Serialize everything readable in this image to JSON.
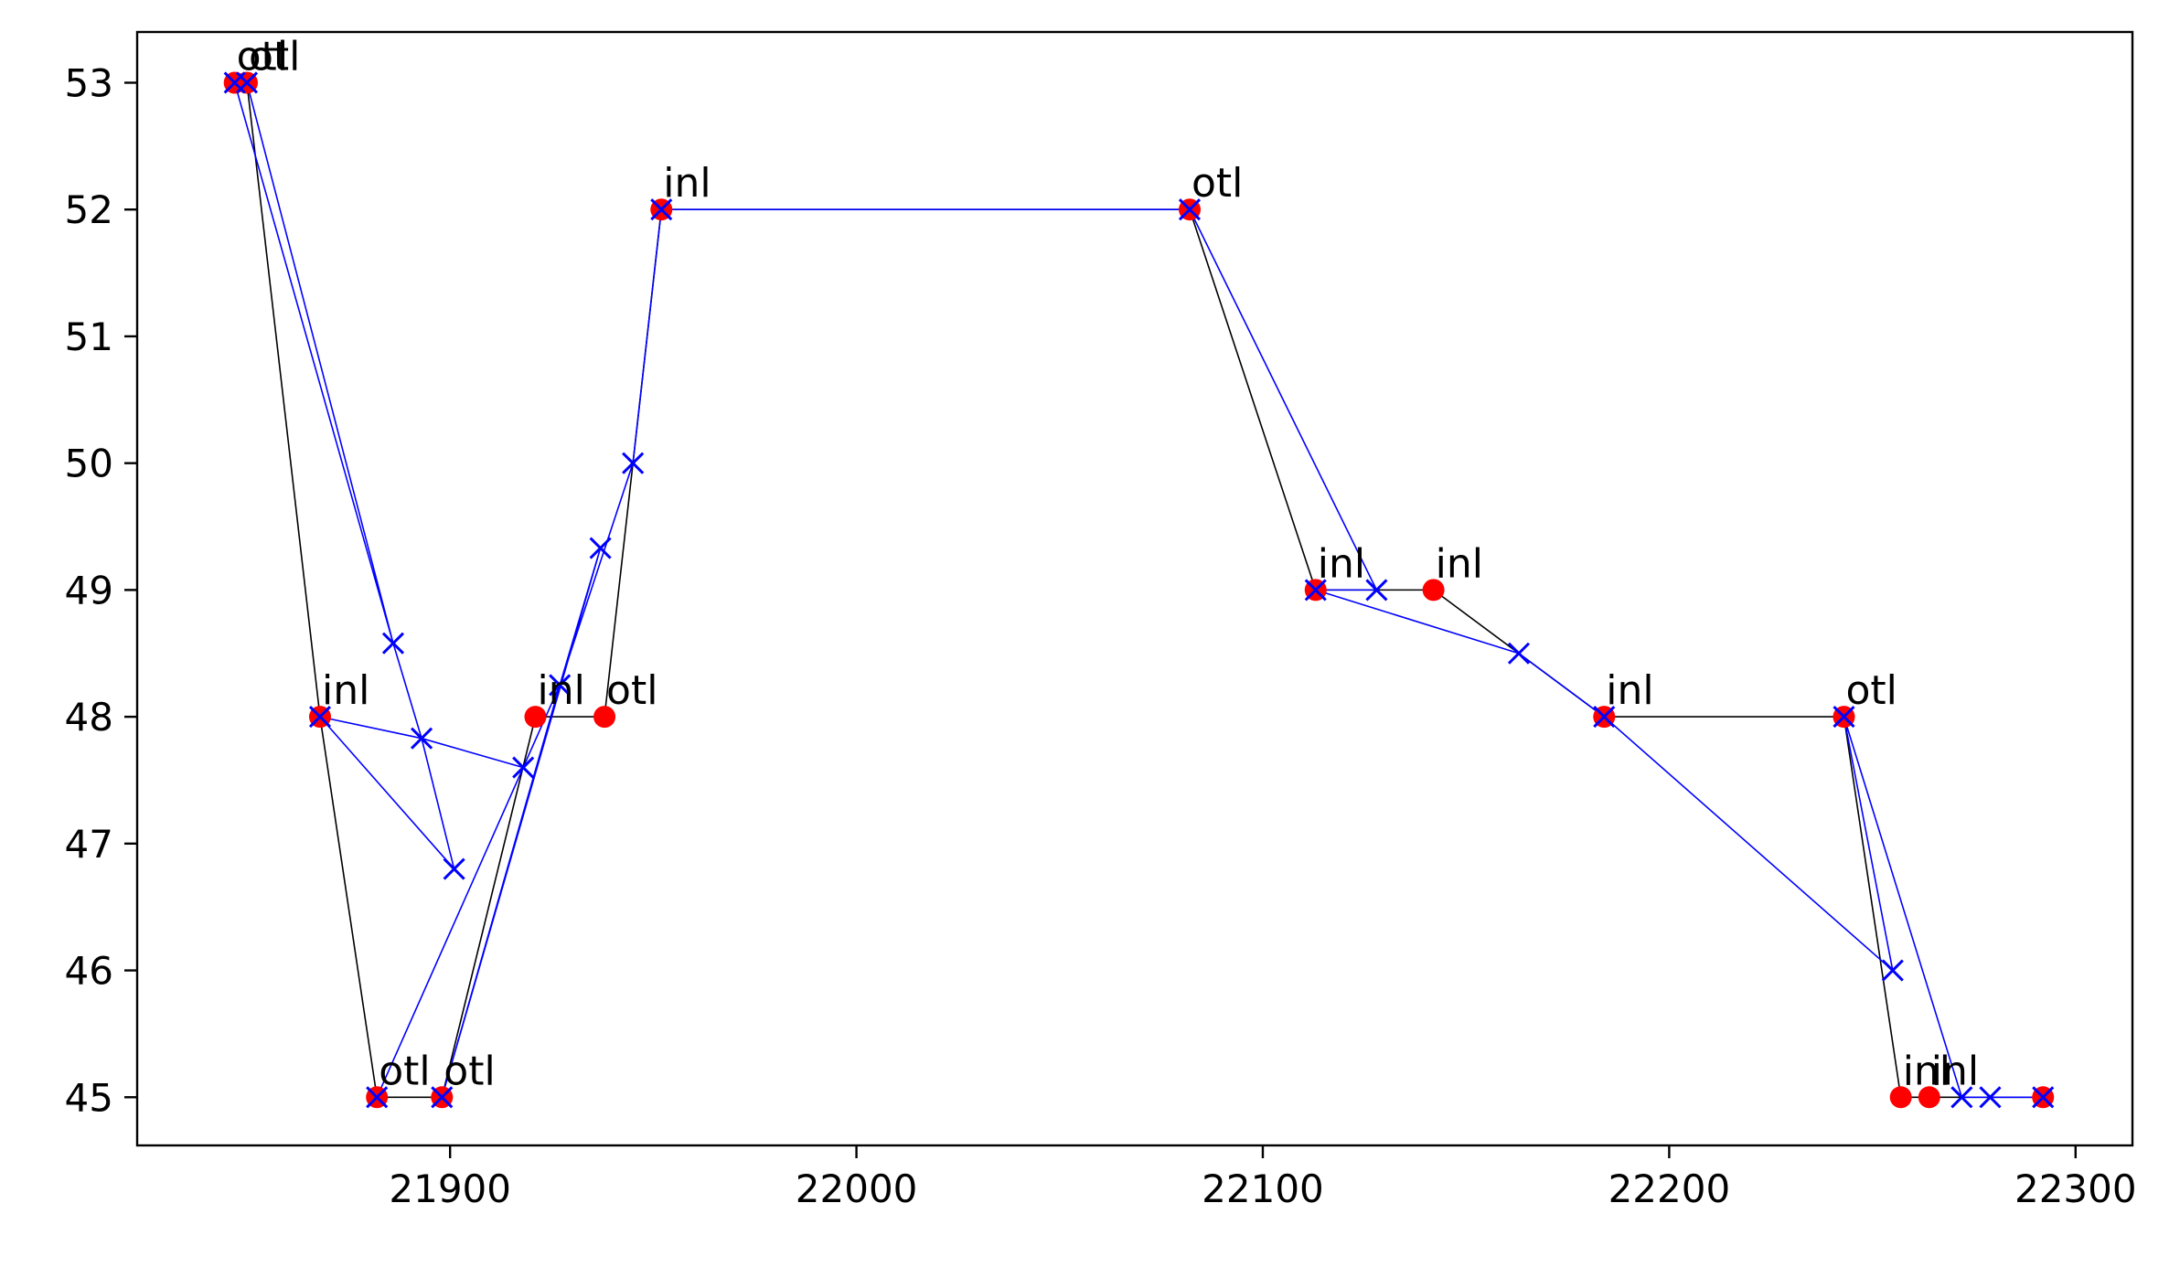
{
  "chart_data": {
    "type": "line",
    "title": "",
    "xlabel": "",
    "ylabel": "",
    "xlim": [
      21823,
      22314
    ],
    "ylim": [
      44.62,
      53.4
    ],
    "xticks": [
      21900,
      22000,
      22100,
      22200,
      22300
    ],
    "yticks": [
      45,
      46,
      47,
      48,
      49,
      50,
      51,
      52,
      53
    ],
    "grid": false,
    "legend": "none",
    "colors": {
      "line_black": "#000000",
      "line_blue": "#0000ff",
      "point_red": "#ff0000",
      "marker_blue": "#0000ff"
    },
    "series": [
      {
        "style": "black-line-red-dots",
        "points": [
          {
            "x": 21847,
            "y": 53,
            "label": "otl"
          },
          {
            "x": 21850,
            "y": 53,
            "label": "otl"
          },
          {
            "x": 21868,
            "y": 48,
            "label": "inl"
          },
          {
            "x": 21882,
            "y": 45,
            "label": "otl"
          },
          {
            "x": 21898,
            "y": 45,
            "label": "otl"
          },
          {
            "x": 21921,
            "y": 48,
            "label": "inl"
          },
          {
            "x": 21938,
            "y": 48,
            "label": "otl"
          },
          {
            "x": 21952,
            "y": 52,
            "label": "inl"
          },
          {
            "x": 22082,
            "y": 52,
            "label": "otl"
          },
          {
            "x": 22113,
            "y": 49,
            "label": "inl"
          },
          {
            "x": 22142,
            "y": 49,
            "label": "inl"
          },
          {
            "x": 22184,
            "y": 48,
            "label": "inl"
          },
          {
            "x": 22243,
            "y": 48,
            "label": "otl"
          },
          {
            "x": 22257,
            "y": 45,
            "label": "inl"
          },
          {
            "x": 22264,
            "y": 45,
            "label": "inl"
          },
          {
            "x": 22292,
            "y": 45,
            "label": ""
          }
        ]
      },
      {
        "style": "blue-line-x-markers",
        "points": [
          {
            "x": 21847,
            "y": 53
          },
          {
            "x": 21886,
            "y": 48.58
          },
          {
            "x": 21850,
            "y": 53
          },
          {
            "x": 21886,
            "y": 48.58
          },
          {
            "x": 21893,
            "y": 47.83
          },
          {
            "x": 21901,
            "y": 46.8
          },
          {
            "x": 21868,
            "y": 48
          },
          {
            "x": 21893,
            "y": 47.83
          },
          {
            "x": 21918,
            "y": 47.6
          },
          {
            "x": 21882,
            "y": 45
          },
          {
            "x": 21918,
            "y": 47.6
          },
          {
            "x": 21927,
            "y": 48.25
          },
          {
            "x": 21937,
            "y": 49.33
          },
          {
            "x": 21898,
            "y": 45
          },
          {
            "x": 21927,
            "y": 48.25
          },
          {
            "x": 21945,
            "y": 50
          },
          {
            "x": 21952,
            "y": 52
          },
          {
            "x": 22082,
            "y": 52
          },
          {
            "x": 22128,
            "y": 49
          },
          {
            "x": 22113,
            "y": 49
          },
          {
            "x": 22163,
            "y": 48.5
          },
          {
            "x": 22184,
            "y": 48
          },
          {
            "x": 22255,
            "y": 46
          },
          {
            "x": 22243,
            "y": 48
          },
          {
            "x": 22272,
            "y": 45
          },
          {
            "x": 22279,
            "y": 45
          },
          {
            "x": 22292,
            "y": 45
          }
        ]
      }
    ]
  }
}
